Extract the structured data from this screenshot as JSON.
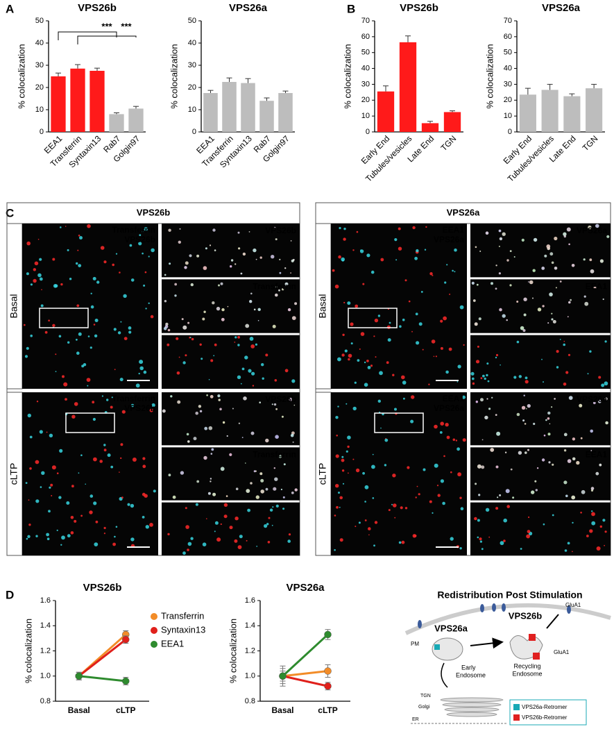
{
  "panel_labels": [
    "A",
    "B",
    "C",
    "D"
  ],
  "chart_data": [
    {
      "type": "bar",
      "title": "VPS26b",
      "y_label": "% colocalization",
      "categories": [
        "EEA1",
        "Transferrin",
        "Syntaxin13",
        "Rab7",
        "Golgin97"
      ],
      "values": [
        25,
        28.5,
        27.5,
        8,
        10.5
      ],
      "errors": [
        1.5,
        1.8,
        1.2,
        0.6,
        1.0
      ],
      "colors": [
        "#ff1a1a",
        "#ff1a1a",
        "#ff1a1a",
        "#bdbdbd",
        "#bdbdbd"
      ],
      "ylim": [
        0,
        50
      ],
      "yticks": [
        0,
        10,
        20,
        30,
        40,
        50
      ],
      "annotations": [
        "***",
        "***"
      ]
    },
    {
      "type": "bar",
      "title": "VPS26a",
      "y_label": "% colocalization",
      "categories": [
        "EEA1",
        "Transferrin",
        "Syntaxin13",
        "Rab7",
        "Golgin97"
      ],
      "values": [
        17.5,
        22.5,
        22,
        14,
        17.5
      ],
      "errors": [
        1.2,
        1.8,
        2.0,
        1.3,
        0.9
      ],
      "colors": [
        "#bdbdbd",
        "#bdbdbd",
        "#bdbdbd",
        "#bdbdbd",
        "#bdbdbd"
      ],
      "ylim": [
        0,
        50
      ],
      "yticks": [
        0,
        10,
        20,
        30,
        40,
        50
      ]
    },
    {
      "type": "bar",
      "title": "VPS26b",
      "y_label": "% colocalization",
      "categories": [
        "Early End",
        "Tubules/vesicles",
        "Late End",
        "TGN"
      ],
      "values": [
        25.5,
        56.5,
        5.5,
        12.5
      ],
      "errors": [
        3.5,
        4,
        1.2,
        0.8
      ],
      "colors": [
        "#ff1a1a",
        "#ff1a1a",
        "#ff1a1a",
        "#ff1a1a"
      ],
      "ylim": [
        0,
        70
      ],
      "yticks": [
        0,
        10,
        20,
        30,
        40,
        50,
        60,
        70
      ]
    },
    {
      "type": "bar",
      "title": "VPS26a",
      "y_label": "% colocalization",
      "categories": [
        "Early End",
        "Tubules/vesicles",
        "Late End",
        "TGN"
      ],
      "values": [
        23.5,
        26.5,
        22.5,
        27.5
      ],
      "errors": [
        4,
        3.5,
        1.5,
        2.5
      ],
      "colors": [
        "#bdbdbd",
        "#bdbdbd",
        "#bdbdbd",
        "#bdbdbd"
      ],
      "ylim": [
        0,
        70
      ],
      "yticks": [
        0,
        10,
        20,
        30,
        40,
        50,
        60,
        70
      ]
    },
    {
      "type": "line",
      "title": "VPS26b",
      "y_label": "% colocalization",
      "categories": [
        "Basal",
        "cLTP"
      ],
      "legend": "right",
      "series": [
        {
          "name": "Transferrin",
          "color": "#f28c28",
          "values": [
            1.0,
            1.33
          ],
          "errors": [
            0.03,
            0.03
          ]
        },
        {
          "name": "Syntaxin13",
          "color": "#e0201b",
          "values": [
            1.0,
            1.29
          ],
          "errors": [
            0.03,
            0.03
          ]
        },
        {
          "name": "EEA1",
          "color": "#2e8b2e",
          "values": [
            1.0,
            0.96
          ],
          "errors": [
            0.03,
            0.03
          ]
        }
      ],
      "ylim": [
        0.8,
        1.6
      ],
      "yticks": [
        0.8,
        {
          "value": 1.0,
          "label": "1.0"
        },
        1.2,
        1.4,
        1.6
      ]
    },
    {
      "type": "line",
      "title": "VPS26a",
      "y_label": "% colocalization",
      "categories": [
        "Basal",
        "cLTP"
      ],
      "legend": "none",
      "series": [
        {
          "name": "Transferrin",
          "color": "#f28c28",
          "values": [
            1.0,
            1.04
          ],
          "errors": [
            0.08,
            0.05
          ]
        },
        {
          "name": "Syntaxin13",
          "color": "#e0201b",
          "values": [
            1.0,
            0.92
          ],
          "errors": [
            0.06,
            0.03
          ]
        },
        {
          "name": "EEA1",
          "color": "#2e8b2e",
          "values": [
            1.0,
            1.33
          ],
          "errors": [
            0.04,
            0.04
          ]
        }
      ],
      "ylim": [
        0.8,
        1.6
      ],
      "yticks": [
        0.8,
        {
          "value": 1.0,
          "label": "1.0"
        },
        1.2,
        1.4,
        1.6
      ]
    }
  ],
  "panel_c": {
    "left": {
      "title": "VPS26b",
      "rows": [
        {
          "condition": "Basal",
          "merge_labels": [
            "Transferrin",
            "VPS26b"
          ],
          "channels": [
            "VPS26b",
            "Transferrin"
          ]
        },
        {
          "condition": "cLTP",
          "merge_labels": [
            "Transferrin",
            "VPS26b"
          ],
          "channels": [
            "VPS26b",
            "Transferrin"
          ]
        }
      ]
    },
    "right": {
      "title": "VPS26a",
      "rows": [
        {
          "condition": "Basal",
          "merge_labels": [
            "EEA1",
            "VPS26a"
          ],
          "channels": [
            "VPS26a",
            "EEA1"
          ]
        },
        {
          "condition": "cLTP",
          "merge_labels": [
            "EEA1",
            "VPS26a"
          ],
          "channels": [
            "VPS26a",
            "EEA1"
          ]
        }
      ]
    }
  },
  "diagram": {
    "title": "Redistribution Post Stimulation",
    "vps26a": "VPS26a",
    "vps26b": "VPS26b",
    "pm": "PM",
    "early_endosome": [
      "Early",
      "Endosome"
    ],
    "recycling_endosome": [
      "Recycling",
      "Endosome"
    ],
    "glua1_top": "GluA1",
    "glua1_side": "GluA1",
    "tgn": "TGN",
    "golgi": "Golgi",
    "er": "ER",
    "legend": [
      "VPS26a-Retromer",
      "VPS26b-Retromer"
    ]
  }
}
